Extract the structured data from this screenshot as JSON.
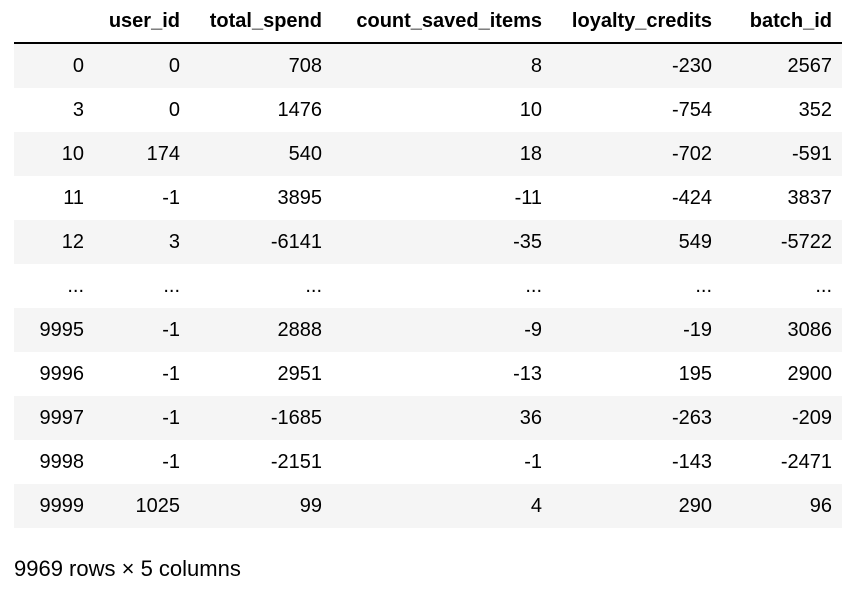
{
  "table": {
    "columns": [
      "",
      "user_id",
      "total_spend",
      "count_saved_items",
      "loyalty_credits",
      "batch_id"
    ],
    "rows": [
      [
        "0",
        "0",
        "708",
        "8",
        "-230",
        "2567"
      ],
      [
        "3",
        "0",
        "1476",
        "10",
        "-754",
        "352"
      ],
      [
        "10",
        "174",
        "540",
        "18",
        "-702",
        "-591"
      ],
      [
        "11",
        "-1",
        "3895",
        "-11",
        "-424",
        "3837"
      ],
      [
        "12",
        "3",
        "-6141",
        "-35",
        "549",
        "-5722"
      ],
      [
        "...",
        "...",
        "...",
        "...",
        "...",
        "..."
      ],
      [
        "9995",
        "-1",
        "2888",
        "-9",
        "-19",
        "3086"
      ],
      [
        "9996",
        "-1",
        "2951",
        "-13",
        "195",
        "2900"
      ],
      [
        "9997",
        "-1",
        "-1685",
        "36",
        "-263",
        "-209"
      ],
      [
        "9998",
        "-1",
        "-2151",
        "-1",
        "-143",
        "-2471"
      ],
      [
        "9999",
        "1025",
        "99",
        "4",
        "290",
        "96"
      ]
    ]
  },
  "shape_note": "9969 rows × 5 columns"
}
